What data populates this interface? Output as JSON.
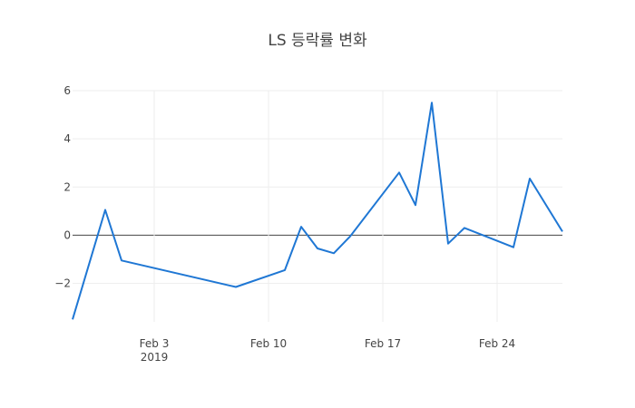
{
  "chart_data": {
    "type": "line",
    "title": "LS 등락률 변화",
    "xlabel": "",
    "ylabel": "",
    "x_range": [
      "2019-01-29",
      "2019-02-28"
    ],
    "ylim": [
      -3.6,
      6
    ],
    "y_ticks": [
      6,
      4,
      2,
      0,
      -2
    ],
    "y_tick_labels": [
      "6",
      "4",
      "2",
      "0",
      "−2"
    ],
    "x_ticks": [
      {
        "date": "2019-02-03",
        "label": "Feb 3",
        "sublabel": "2019"
      },
      {
        "date": "2019-02-10",
        "label": "Feb 10",
        "sublabel": ""
      },
      {
        "date": "2019-02-17",
        "label": "Feb 17",
        "sublabel": ""
      },
      {
        "date": "2019-02-24",
        "label": "Feb 24",
        "sublabel": ""
      }
    ],
    "grid": true,
    "line_color": "#1f77d4",
    "series": [
      {
        "x": [
          "2019-01-29",
          "2019-01-31",
          "2019-02-01",
          "2019-02-08",
          "2019-02-11",
          "2019-02-12",
          "2019-02-13",
          "2019-02-14",
          "2019-02-15",
          "2019-02-18",
          "2019-02-19",
          "2019-02-20",
          "2019-02-21",
          "2019-02-22",
          "2019-02-25",
          "2019-02-26",
          "2019-02-28"
        ],
        "values": [
          -3.5,
          1.05,
          -1.05,
          -2.15,
          -1.45,
          0.35,
          -0.55,
          -0.75,
          -0.05,
          2.6,
          1.25,
          5.5,
          -0.35,
          0.3,
          -0.5,
          2.35,
          0.15
        ]
      }
    ]
  }
}
